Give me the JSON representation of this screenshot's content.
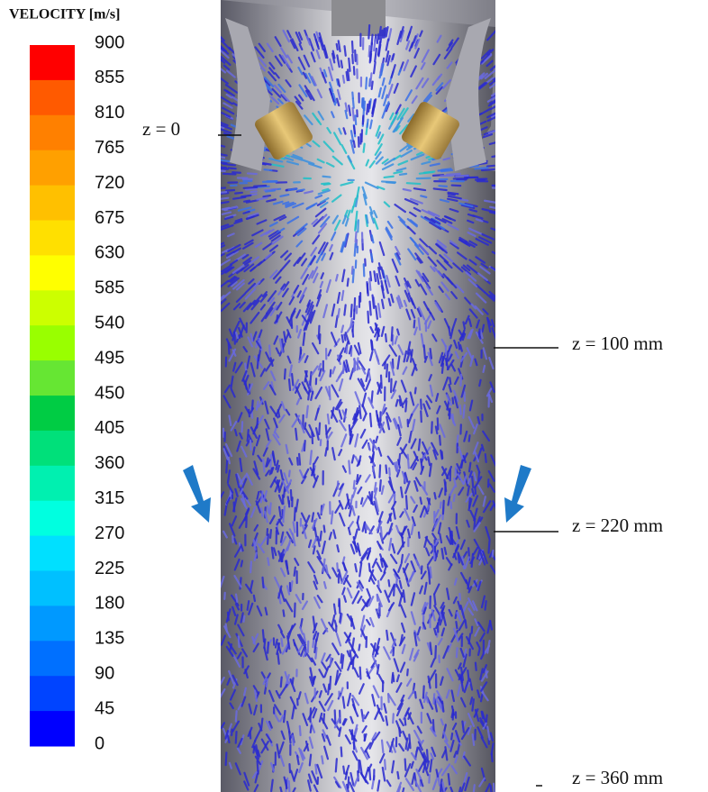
{
  "legend": {
    "title": "VELOCITY [m/s]",
    "labels": [
      900,
      855,
      810,
      765,
      720,
      675,
      630,
      585,
      540,
      495,
      450,
      405,
      360,
      315,
      270,
      225,
      180,
      135,
      90,
      45,
      0
    ],
    "colors": [
      "#ff0000",
      "#ff5a00",
      "#ff8000",
      "#ffa000",
      "#ffc000",
      "#ffe000",
      "#ffff00",
      "#ccff00",
      "#99ff00",
      "#66e633",
      "#00cc44",
      "#00e07a",
      "#00f0b0",
      "#00ffe0",
      "#00e0ff",
      "#00c0ff",
      "#0099ff",
      "#0070ff",
      "#0044ff",
      "#0000ff"
    ]
  },
  "annotations": [
    "z = 0",
    "z = 100 mm",
    "z = 220 mm",
    "z = 360 mm"
  ]
}
